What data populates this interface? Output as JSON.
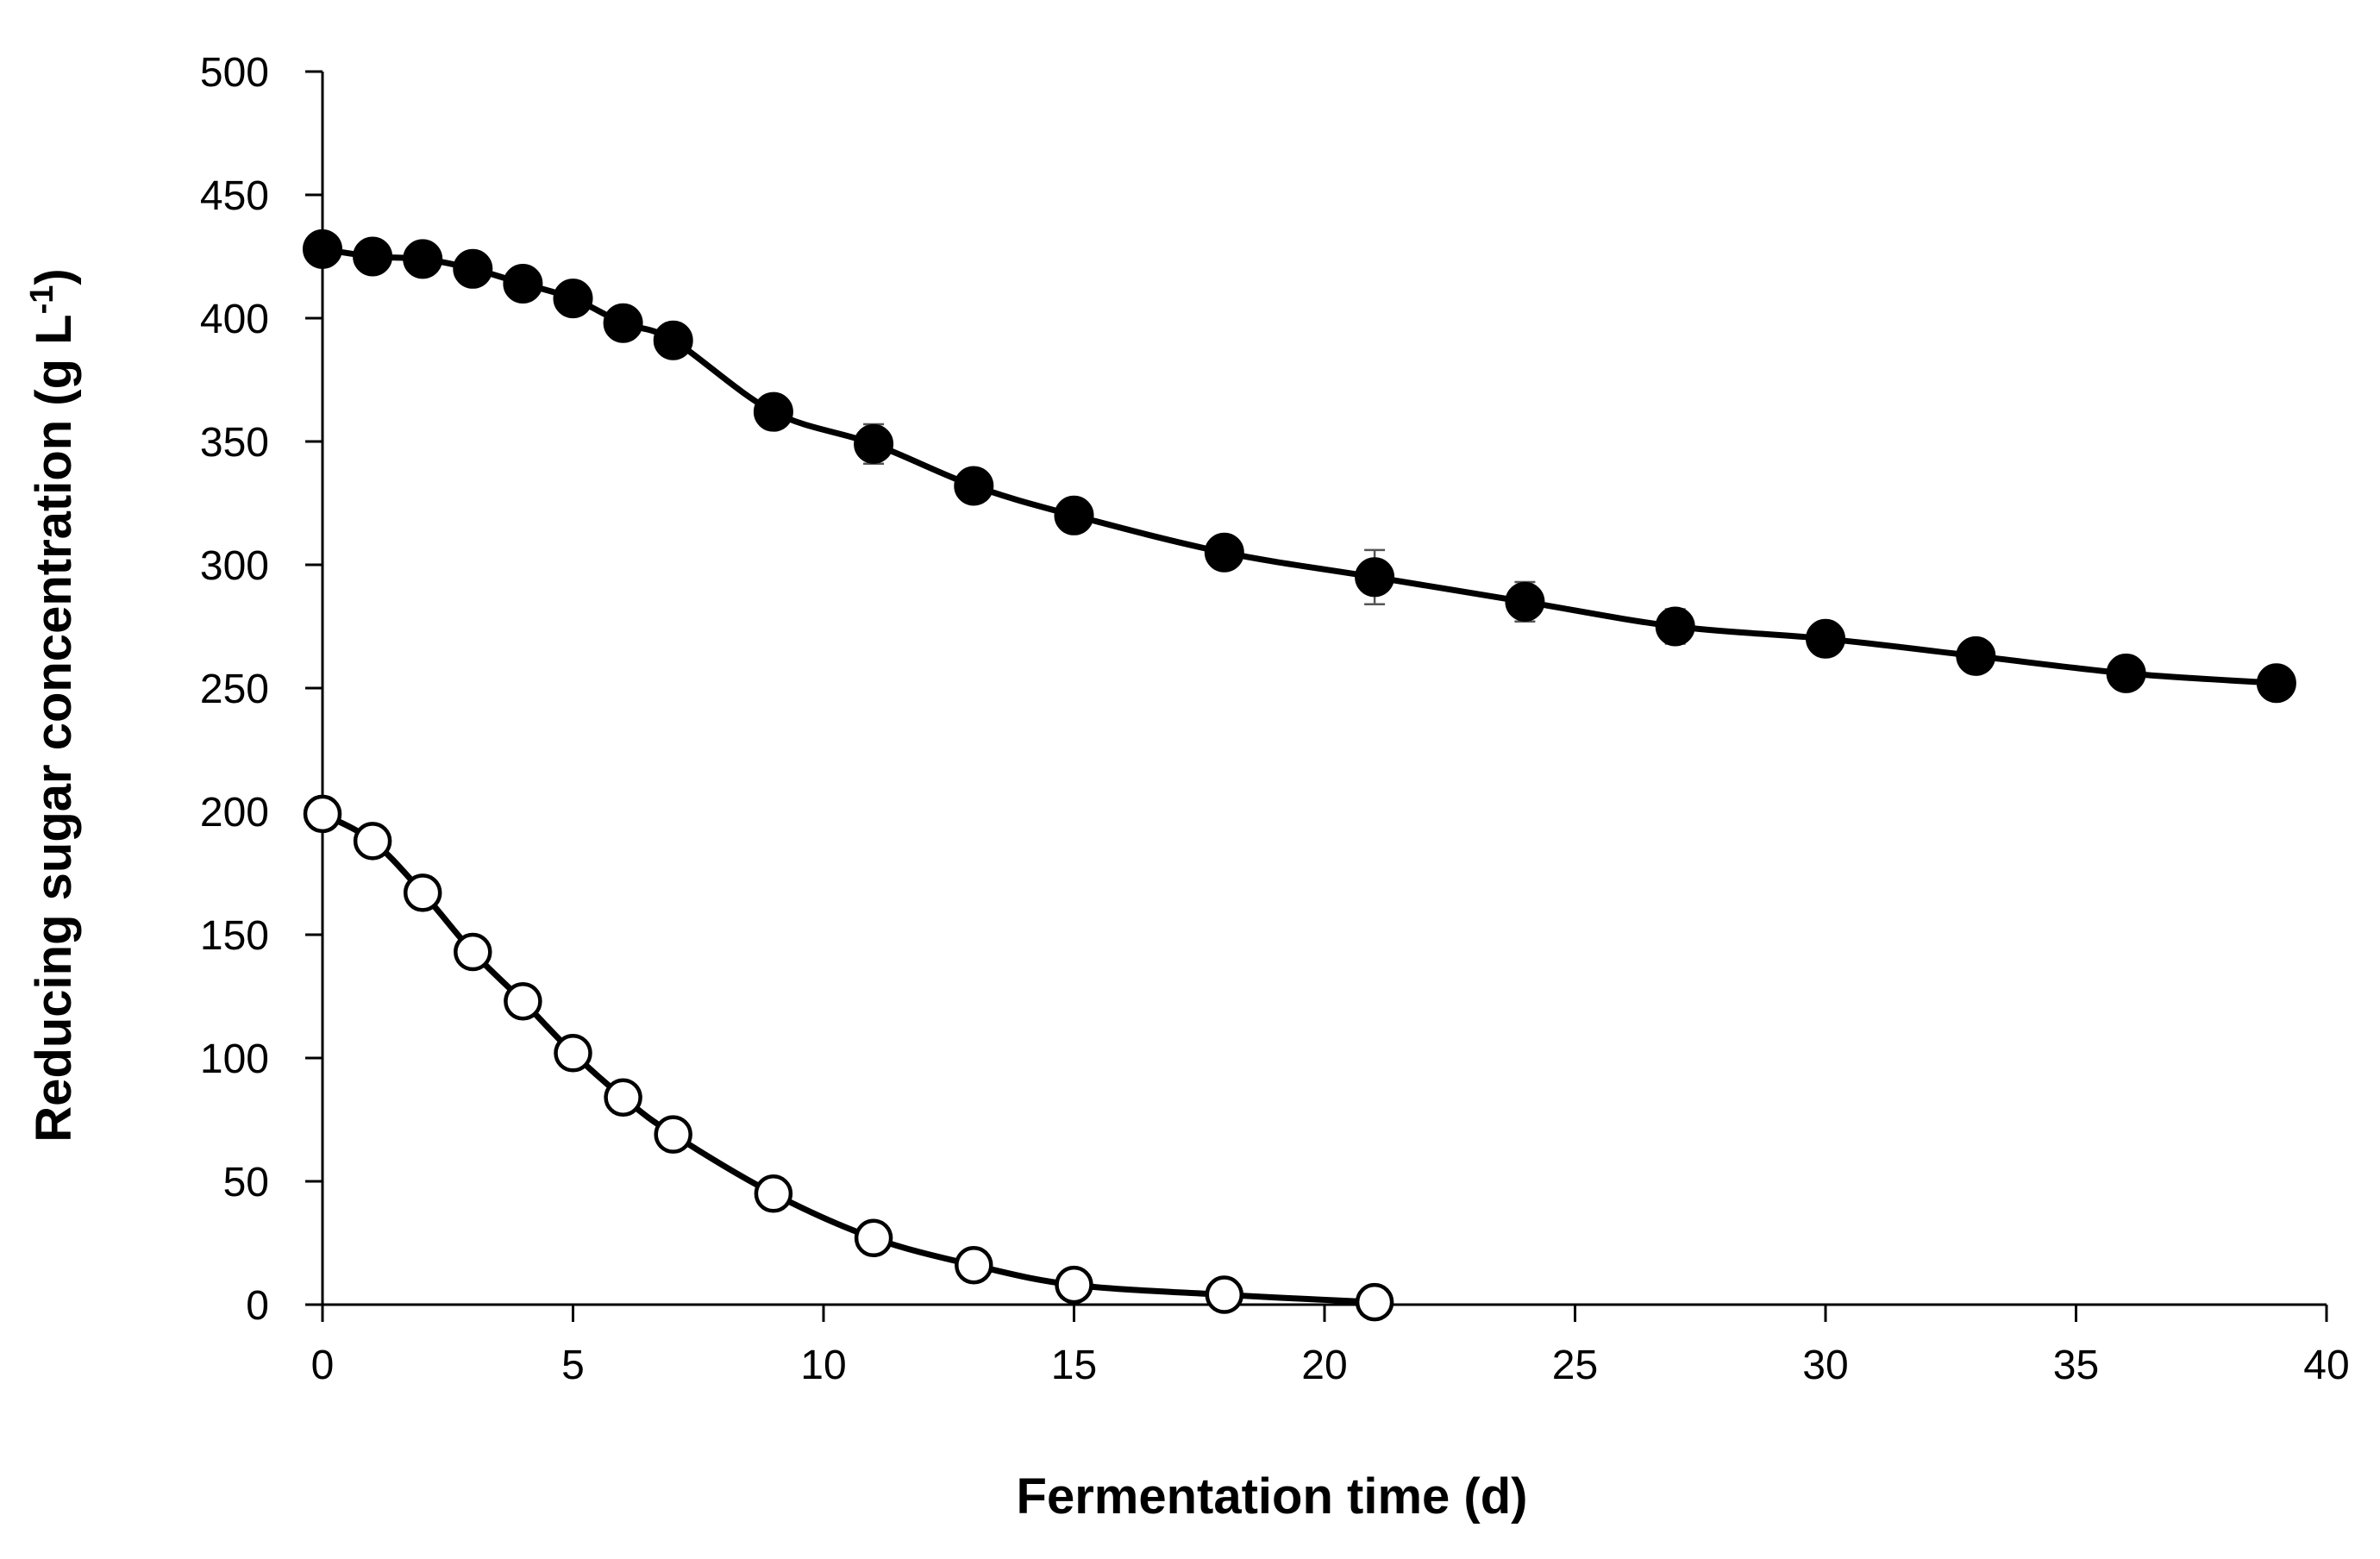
{
  "chart_data": {
    "type": "line",
    "title": "",
    "xlabel": "Fermentation time (d)",
    "ylabel_main": "Reducing sugar concentration (g L",
    "ylabel_sup": "-1",
    "ylabel_close": ")",
    "xlim": [
      0,
      40
    ],
    "ylim": [
      0,
      500
    ],
    "xticks": [
      0,
      5,
      10,
      15,
      20,
      25,
      30,
      35,
      40
    ],
    "yticks": [
      0,
      50,
      100,
      150,
      200,
      250,
      300,
      350,
      400,
      450,
      500
    ],
    "grid": false,
    "legend": "none",
    "series": [
      {
        "name": "filled",
        "marker": "filled-circle",
        "color": "#000000",
        "x": [
          0,
          1,
          2,
          3,
          4,
          5,
          6,
          7,
          9,
          11,
          13,
          15,
          18,
          21,
          24,
          27,
          30,
          33,
          36,
          39
        ],
        "y": [
          428,
          425,
          424,
          420,
          414,
          408,
          398,
          391,
          362,
          349,
          332,
          320,
          305,
          295,
          285,
          275,
          270,
          263,
          256,
          252
        ],
        "err": [
          0,
          0,
          0,
          0,
          0,
          0,
          0,
          0,
          0,
          8,
          0,
          0,
          0,
          11,
          8,
          7,
          0,
          0,
          0,
          0
        ]
      },
      {
        "name": "open",
        "marker": "open-circle",
        "color": "#000000",
        "x": [
          0,
          1,
          2,
          3,
          4,
          5,
          6,
          7,
          9,
          11,
          13,
          15,
          18,
          21
        ],
        "y": [
          199,
          188,
          167,
          143,
          123,
          102,
          84,
          69,
          45,
          27,
          16,
          8,
          4,
          1
        ],
        "err": [
          0,
          0,
          0,
          0,
          0,
          0,
          0,
          0,
          0,
          0,
          0,
          0,
          0,
          0
        ]
      }
    ]
  }
}
